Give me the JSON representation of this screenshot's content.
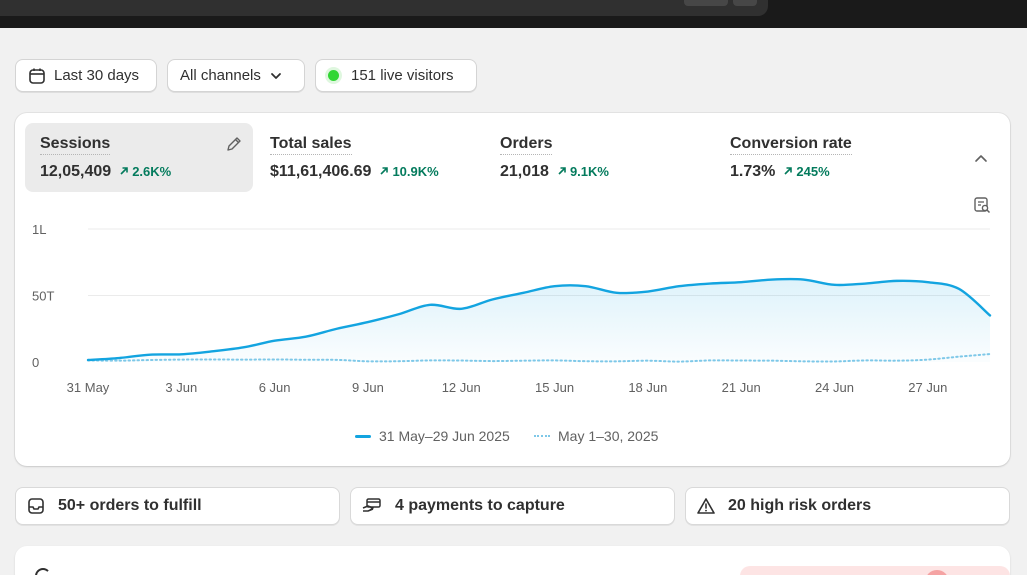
{
  "filters": {
    "date_range": "Last 30 days",
    "channels": "All channels",
    "live_visitors": "151 live visitors"
  },
  "metrics": [
    {
      "label": "Sessions",
      "value": "12,05,409",
      "change": "2.6K%"
    },
    {
      "label": "Total sales",
      "value": "$11,61,406.69",
      "change": "10.9K%"
    },
    {
      "label": "Orders",
      "value": "21,018",
      "change": "9.1K%"
    },
    {
      "label": "Conversion rate",
      "value": "1.73%",
      "change": "245%"
    }
  ],
  "chart_data": {
    "type": "area",
    "title": "",
    "xlabel": "",
    "ylabel": "",
    "y_tick_labels": [
      "0",
      "50T",
      "1L"
    ],
    "ylim": [
      0,
      100000
    ],
    "x_tick_labels": [
      "31 May",
      "3 Jun",
      "6 Jun",
      "9 Jun",
      "12 Jun",
      "15 Jun",
      "18 Jun",
      "21 Jun",
      "24 Jun",
      "27 Jun"
    ],
    "grid": true,
    "legend_placement": "bottom",
    "series": [
      {
        "name": "31 May–29 Jun 2025",
        "style": "solid",
        "color": "#13a4e0",
        "values": [
          1500,
          3000,
          5500,
          5800,
          8000,
          11000,
          16000,
          19000,
          25000,
          30000,
          36000,
          43000,
          40000,
          47000,
          52000,
          57000,
          57000,
          52000,
          53000,
          57000,
          59000,
          60000,
          62000,
          62000,
          58000,
          59000,
          61000,
          60000,
          55000,
          35000
        ]
      },
      {
        "name": "May 1–30, 2025",
        "style": "dotted",
        "color": "#7ec8e8",
        "values": [
          1200,
          1000,
          1500,
          1800,
          1900,
          1800,
          1900,
          1700,
          1600,
          500,
          600,
          1200,
          1100,
          700,
          1000,
          1200,
          600,
          500,
          1000,
          300,
          1200,
          1100,
          1000,
          500,
          400,
          1200,
          1000,
          1800,
          4000,
          6000
        ]
      }
    ]
  },
  "actions": {
    "fulfill": "50+ orders to fulfill",
    "payments": "4 payments to capture",
    "risk": "20 high risk orders"
  },
  "colors": {
    "accent": "#13a4e0",
    "positive": "#047b5d",
    "live_dot": "#31d634"
  }
}
